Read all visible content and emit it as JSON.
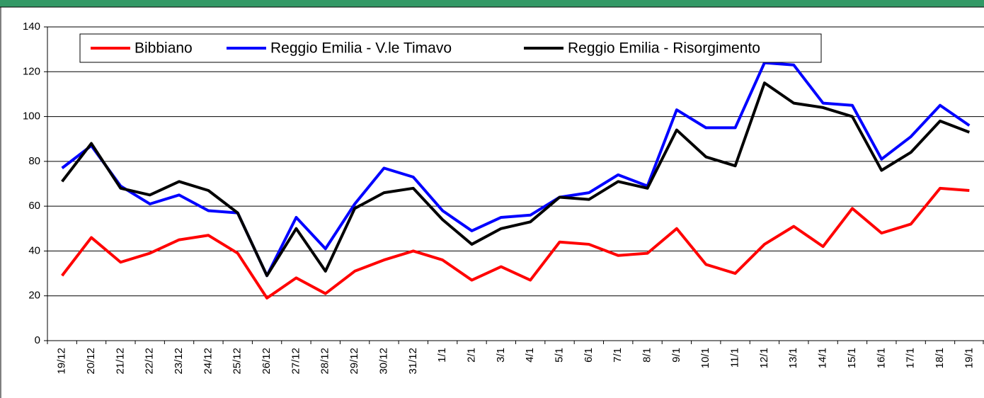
{
  "chart_data": {
    "type": "line",
    "categories": [
      "19/12",
      "20/12",
      "21/12",
      "22/12",
      "23/12",
      "24/12",
      "25/12",
      "26/12",
      "27/12",
      "28/12",
      "29/12",
      "30/12",
      "31/12",
      "1/1",
      "2/1",
      "3/1",
      "4/1",
      "5/1",
      "6/1",
      "7/1",
      "8/1",
      "9/1",
      "10/1",
      "11/1",
      "12/1",
      "13/1",
      "14/1",
      "15/1",
      "16/1",
      "17/1",
      "18/1",
      "19/1"
    ],
    "series": [
      {
        "name": "Bibbiano",
        "color": "#ff0000",
        "values": [
          29,
          46,
          35,
          39,
          45,
          47,
          39,
          19,
          28,
          21,
          31,
          36,
          40,
          36,
          27,
          33,
          27,
          44,
          43,
          38,
          39,
          50,
          34,
          30,
          43,
          51,
          42,
          59,
          48,
          52,
          68,
          67
        ]
      },
      {
        "name": "Reggio Emilia - V.le Timavo",
        "color": "#0000ff",
        "values": [
          77,
          87,
          69,
          61,
          65,
          58,
          57,
          29,
          55,
          41,
          61,
          77,
          73,
          58,
          49,
          55,
          56,
          64,
          66,
          74,
          69,
          103,
          95,
          95,
          124,
          123,
          106,
          105,
          81,
          91,
          105,
          96
        ]
      },
      {
        "name": "Reggio Emilia - Risorgimento",
        "color": "#000000",
        "values": [
          71,
          88,
          68,
          65,
          71,
          67,
          57,
          29,
          50,
          31,
          59,
          66,
          68,
          54,
          43,
          50,
          53,
          64,
          63,
          71,
          68,
          94,
          82,
          78,
          115,
          106,
          104,
          100,
          76,
          84,
          98,
          93
        ]
      }
    ],
    "ylim": [
      0,
      140
    ],
    "yticks": [
      0,
      20,
      40,
      60,
      80,
      100,
      120,
      140
    ],
    "grid": true,
    "legend": "top"
  }
}
